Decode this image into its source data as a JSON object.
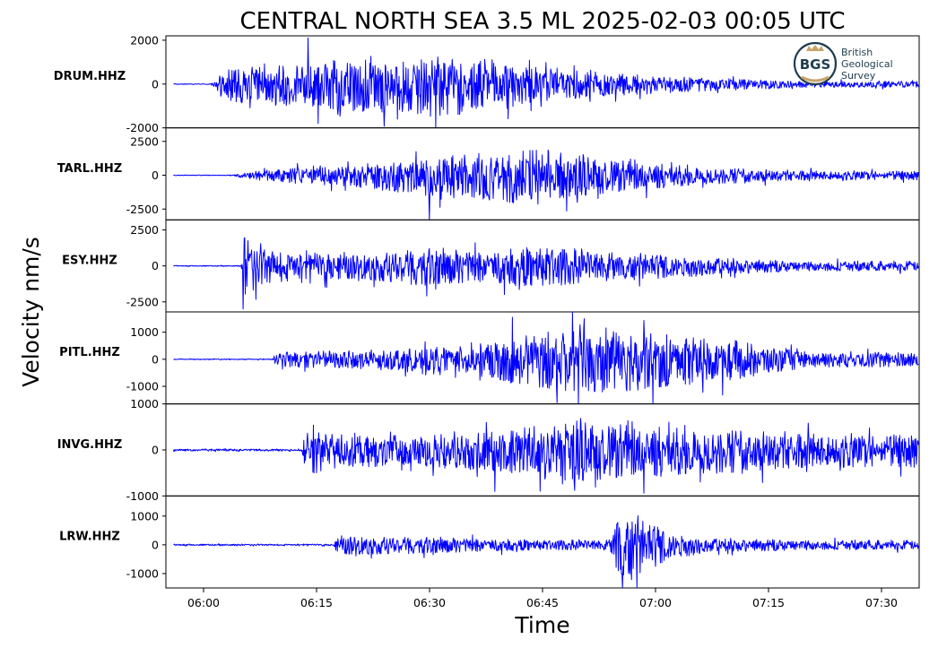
{
  "chart_data": {
    "type": "line",
    "title": "CENTRAL NORTH SEA 3.5 ML   2025-02-03 00:05 UTC",
    "xlabel": "Time",
    "ylabel": "Velocity nm/s",
    "x_ticks": [
      "06:00",
      "06:15",
      "06:30",
      "06:45",
      "07:00",
      "07:15",
      "07:30"
    ],
    "x_range": [
      "05:55",
      "07:35"
    ],
    "line_color": "#0000ff",
    "grid": false,
    "logo": {
      "abbr": "BGS",
      "lines": [
        "British",
        "Geological",
        "Survey"
      ]
    },
    "panels": [
      {
        "channel": "DRUM.HHZ",
        "ylim": [
          -2000,
          2200
        ],
        "y_ticks": [
          {
            "v": 2000,
            "label": "2000"
          },
          {
            "v": 0,
            "label": "0"
          },
          {
            "v": -2000,
            "label": "-2000"
          }
        ],
        "onset": "06:01",
        "peak": 2100,
        "envelope": [
          [
            0,
            30
          ],
          [
            1.0,
            500
          ],
          [
            3,
            900
          ],
          [
            10,
            1000
          ],
          [
            18,
            1250
          ],
          [
            23,
            1300
          ],
          [
            30,
            1500
          ],
          [
            35,
            1400
          ],
          [
            40,
            1100
          ],
          [
            45,
            800
          ],
          [
            55,
            500
          ],
          [
            65,
            350
          ],
          [
            75,
            200
          ],
          [
            80,
            150
          ]
        ]
      },
      {
        "channel": "TARL.HHZ",
        "ylim": [
          -3300,
          3500
        ],
        "y_ticks": [
          {
            "v": 2500,
            "label": "2500"
          },
          {
            "v": 0,
            "label": "0"
          },
          {
            "v": -2500,
            "label": "-2500"
          }
        ],
        "onset": "06:04",
        "peak": 3400,
        "envelope": [
          [
            0,
            50
          ],
          [
            1.5,
            300
          ],
          [
            8,
            600
          ],
          [
            15,
            800
          ],
          [
            25,
            1500
          ],
          [
            30,
            1700
          ],
          [
            40,
            2200
          ],
          [
            45,
            1600
          ],
          [
            52,
            1200
          ],
          [
            62,
            700
          ],
          [
            72,
            450
          ],
          [
            77,
            350
          ]
        ]
      },
      {
        "channel": "ESY.HHZ",
        "ylim": [
          -3200,
          3200
        ],
        "y_ticks": [
          {
            "v": 2500,
            "label": "2500"
          },
          {
            "v": 0,
            "label": "0"
          },
          {
            "v": -2500,
            "label": "-2500"
          }
        ],
        "onset": "06:05",
        "peak": 3000,
        "envelope": [
          [
            0,
            60
          ],
          [
            0.3,
            2600
          ],
          [
            2,
            1600
          ],
          [
            6,
            1000
          ],
          [
            15,
            900
          ],
          [
            24,
            1400
          ],
          [
            32,
            1100
          ],
          [
            40,
            1500
          ],
          [
            48,
            1100
          ],
          [
            55,
            900
          ],
          [
            65,
            550
          ],
          [
            75,
            350
          ]
        ]
      },
      {
        "channel": "PITL.HHZ",
        "ylim": [
          -1650,
          1750
        ],
        "y_ticks": [
          {
            "v": 1000,
            "label": "1000"
          },
          {
            "v": 0,
            "label": "0"
          },
          {
            "v": -1000,
            "label": "-1000"
          }
        ],
        "onset": "06:09",
        "peak": 1550,
        "envelope": [
          [
            0,
            30
          ],
          [
            1,
            300
          ],
          [
            10,
            350
          ],
          [
            25,
            500
          ],
          [
            34,
            1000
          ],
          [
            44,
            1300
          ],
          [
            52,
            1050
          ],
          [
            60,
            850
          ],
          [
            68,
            450
          ],
          [
            72,
            300
          ]
        ]
      },
      {
        "channel": "INVG.HHZ",
        "ylim": [
          -1000,
          1000
        ],
        "y_ticks": [
          {
            "v": 1000,
            "label": "1000"
          },
          {
            "v": 0,
            "label": "0"
          },
          {
            "v": -1000,
            "label": "-1000"
          }
        ],
        "onset": "06:13",
        "peak": 900,
        "envelope": [
          [
            0,
            40
          ],
          [
            1,
            600
          ],
          [
            5,
            400
          ],
          [
            12,
            350
          ],
          [
            25,
            450
          ],
          [
            35,
            700
          ],
          [
            45,
            600
          ],
          [
            55,
            520
          ],
          [
            65,
            420
          ],
          [
            69,
            380
          ]
        ]
      },
      {
        "channel": "LRW.HHZ",
        "ylim": [
          -1500,
          1700
        ],
        "y_ticks": [
          {
            "v": 1000,
            "label": "1000"
          },
          {
            "v": 0,
            "label": "0"
          },
          {
            "v": -1000,
            "label": "-1000"
          }
        ],
        "onset": "06:17",
        "peak": 1600,
        "envelope": [
          [
            0,
            50
          ],
          [
            1,
            300
          ],
          [
            3,
            350
          ],
          [
            12,
            300
          ],
          [
            24,
            200
          ],
          [
            30,
            180
          ],
          [
            37,
            200
          ],
          [
            38,
            1500
          ],
          [
            42,
            900
          ],
          [
            45,
            500
          ],
          [
            50,
            250
          ],
          [
            60,
            200
          ],
          [
            65,
            170
          ]
        ]
      }
    ]
  }
}
